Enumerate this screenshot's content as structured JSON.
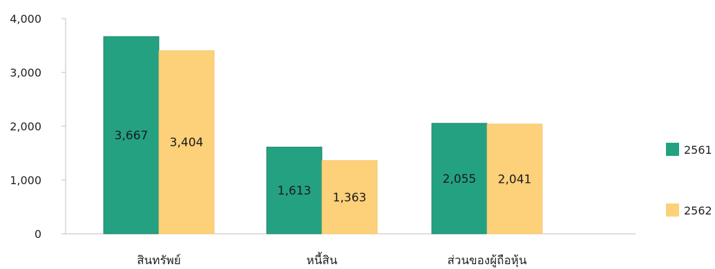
{
  "chart_data": {
    "type": "bar",
    "categories": [
      "สินทรัพย์",
      "หนี้สิน",
      "ส่วนของผู้ถือหุ้น"
    ],
    "series": [
      {
        "name": "2561",
        "values": [
          3667,
          1613,
          2055
        ],
        "labels": [
          "3,667",
          "1,613",
          "2,055"
        ],
        "color": "#23a181"
      },
      {
        "name": "2562",
        "values": [
          3404,
          1363,
          2041
        ],
        "labels": [
          "3,404",
          "1,363",
          "2,041"
        ],
        "color": "#fdd07a"
      }
    ],
    "yticks": [
      "0",
      "1,000",
      "2,000",
      "3,000",
      "4,000"
    ],
    "ylim": [
      0,
      4000
    ],
    "grid": false,
    "legend": "right"
  }
}
